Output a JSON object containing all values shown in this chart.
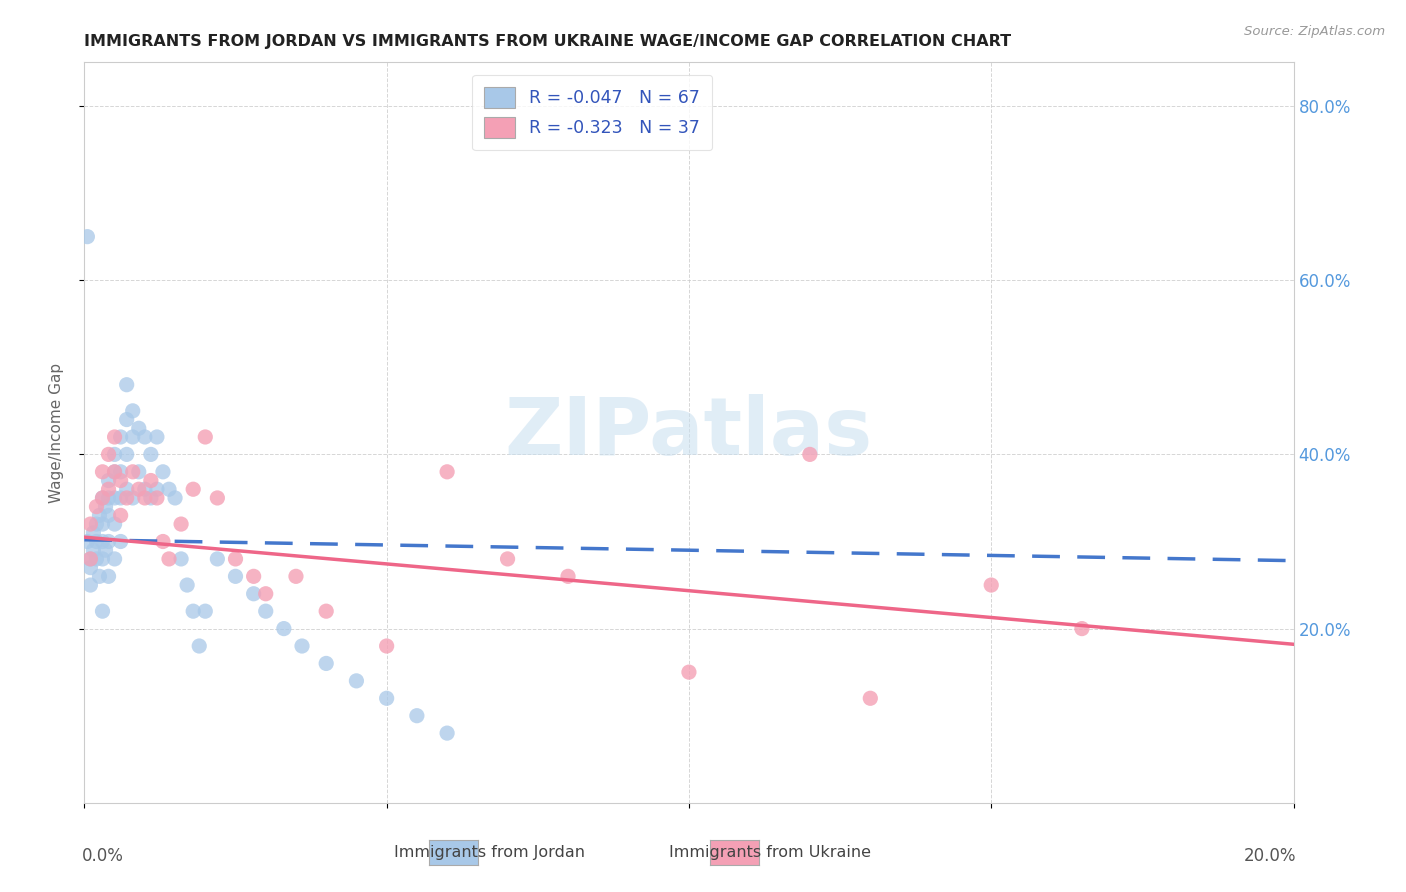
{
  "title": "IMMIGRANTS FROM JORDAN VS IMMIGRANTS FROM UKRAINE WAGE/INCOME GAP CORRELATION CHART",
  "source": "Source: ZipAtlas.com",
  "ylabel": "Wage/Income Gap",
  "right_yticklabels": [
    "20.0%",
    "40.0%",
    "60.0%",
    "80.0%"
  ],
  "right_ytick_vals": [
    0.2,
    0.4,
    0.6,
    0.8
  ],
  "watermark": "ZIPatlas",
  "legend_jordan": "R = -0.047   N = 67",
  "legend_ukraine": "R = -0.323   N = 37",
  "jordan_color": "#A8C8E8",
  "ukraine_color": "#F4A0B5",
  "jordan_line_color": "#4477CC",
  "ukraine_line_color": "#EE6688",
  "background_color": "#FFFFFF",
  "grid_color": "#CCCCCC",
  "xlim": [
    0.0,
    0.2
  ],
  "ylim": [
    0.0,
    0.85
  ],
  "jordan_trend_x": [
    0.0,
    0.2
  ],
  "jordan_trend_y": [
    0.302,
    0.278
  ],
  "ukraine_trend_x": [
    0.0,
    0.2
  ],
  "ukraine_trend_y": [
    0.305,
    0.182
  ],
  "jordan_points_x": [
    0.0005,
    0.001,
    0.001,
    0.001,
    0.0015,
    0.0015,
    0.002,
    0.002,
    0.002,
    0.0025,
    0.0025,
    0.003,
    0.003,
    0.003,
    0.003,
    0.003,
    0.0035,
    0.0035,
    0.004,
    0.004,
    0.004,
    0.004,
    0.004,
    0.005,
    0.005,
    0.005,
    0.005,
    0.005,
    0.006,
    0.006,
    0.006,
    0.006,
    0.007,
    0.007,
    0.007,
    0.008,
    0.008,
    0.008,
    0.009,
    0.009,
    0.01,
    0.01,
    0.011,
    0.011,
    0.012,
    0.012,
    0.013,
    0.014,
    0.015,
    0.016,
    0.017,
    0.018,
    0.019,
    0.02,
    0.022,
    0.025,
    0.028,
    0.03,
    0.033,
    0.036,
    0.04,
    0.045,
    0.05,
    0.055,
    0.06,
    0.007,
    0.0005
  ],
  "jordan_points_y": [
    0.3,
    0.28,
    0.27,
    0.25,
    0.31,
    0.29,
    0.32,
    0.3,
    0.28,
    0.33,
    0.26,
    0.35,
    0.32,
    0.3,
    0.28,
    0.22,
    0.34,
    0.29,
    0.37,
    0.35,
    0.33,
    0.3,
    0.26,
    0.4,
    0.38,
    0.35,
    0.32,
    0.28,
    0.42,
    0.38,
    0.35,
    0.3,
    0.44,
    0.4,
    0.36,
    0.45,
    0.42,
    0.35,
    0.43,
    0.38,
    0.42,
    0.36,
    0.4,
    0.35,
    0.42,
    0.36,
    0.38,
    0.36,
    0.35,
    0.28,
    0.25,
    0.22,
    0.18,
    0.22,
    0.28,
    0.26,
    0.24,
    0.22,
    0.2,
    0.18,
    0.16,
    0.14,
    0.12,
    0.1,
    0.08,
    0.48,
    0.65
  ],
  "ukraine_points_x": [
    0.001,
    0.001,
    0.002,
    0.003,
    0.003,
    0.004,
    0.004,
    0.005,
    0.005,
    0.006,
    0.006,
    0.007,
    0.008,
    0.009,
    0.01,
    0.011,
    0.012,
    0.013,
    0.014,
    0.016,
    0.018,
    0.02,
    0.022,
    0.025,
    0.028,
    0.03,
    0.035,
    0.04,
    0.05,
    0.06,
    0.07,
    0.08,
    0.1,
    0.12,
    0.13,
    0.15,
    0.165
  ],
  "ukraine_points_y": [
    0.32,
    0.28,
    0.34,
    0.38,
    0.35,
    0.4,
    0.36,
    0.42,
    0.38,
    0.37,
    0.33,
    0.35,
    0.38,
    0.36,
    0.35,
    0.37,
    0.35,
    0.3,
    0.28,
    0.32,
    0.36,
    0.42,
    0.35,
    0.28,
    0.26,
    0.24,
    0.26,
    0.22,
    0.18,
    0.38,
    0.28,
    0.26,
    0.15,
    0.4,
    0.12,
    0.25,
    0.2
  ]
}
